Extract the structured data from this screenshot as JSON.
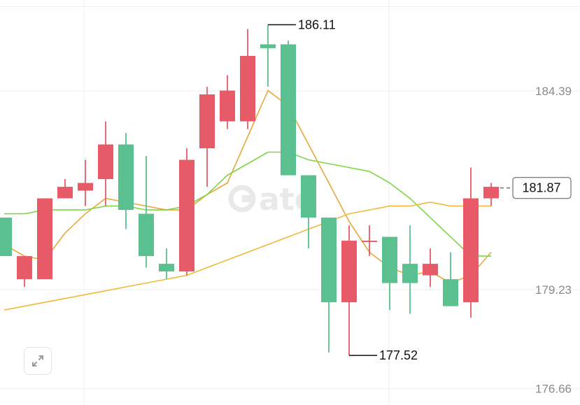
{
  "chart_data": {
    "type": "candlestick",
    "y_axis_ticks": [
      "184.39",
      "179.23",
      "176.66"
    ],
    "ylim": [
      176.5,
      186.6
    ],
    "grid": true,
    "candles": [
      {
        "open": 181.1,
        "close": 180.1,
        "high": 181.1,
        "low": 180.1
      },
      {
        "open": 179.5,
        "close": 180.1,
        "high": 180.1,
        "low": 179.3
      },
      {
        "open": 179.5,
        "close": 181.6,
        "high": 181.6,
        "low": 179.5
      },
      {
        "open": 181.6,
        "close": 181.9,
        "high": 182.1,
        "low": 181.6
      },
      {
        "open": 181.8,
        "close": 182.0,
        "high": 182.6,
        "low": 181.4
      },
      {
        "open": 182.1,
        "close": 183.0,
        "high": 183.6,
        "low": 181.4
      },
      {
        "open": 183.0,
        "close": 181.3,
        "high": 183.3,
        "low": 180.8
      },
      {
        "open": 181.2,
        "close": 180.1,
        "high": 182.7,
        "low": 179.8
      },
      {
        "open": 179.9,
        "close": 179.7,
        "high": 180.3,
        "low": 179.5
      },
      {
        "open": 179.7,
        "close": 182.6,
        "high": 182.9,
        "low": 179.6
      },
      {
        "open": 182.9,
        "close": 184.3,
        "high": 184.5,
        "low": 181.9
      },
      {
        "open": 183.6,
        "close": 184.4,
        "high": 184.8,
        "low": 183.4
      },
      {
        "open": 183.6,
        "close": 185.3,
        "high": 186.0,
        "low": 183.4
      },
      {
        "open": 185.6,
        "close": 185.5,
        "high": 186.11,
        "low": 184.5
      },
      {
        "open": 185.6,
        "close": 182.2,
        "high": 185.7,
        "low": 182.2
      },
      {
        "open": 182.2,
        "close": 181.1,
        "high": 182.2,
        "low": 180.3
      },
      {
        "open": 181.1,
        "close": 178.9,
        "high": 181.1,
        "low": 177.6
      },
      {
        "open": 178.9,
        "close": 180.5,
        "high": 180.9,
        "low": 177.52
      },
      {
        "open": 180.5,
        "close": 180.5,
        "high": 180.9,
        "low": 180.1
      },
      {
        "open": 180.6,
        "close": 179.4,
        "high": 180.6,
        "low": 178.7
      },
      {
        "open": 179.9,
        "close": 179.4,
        "high": 180.9,
        "low": 178.6
      },
      {
        "open": 179.6,
        "close": 179.9,
        "high": 180.3,
        "low": 179.3
      },
      {
        "open": 179.5,
        "close": 178.8,
        "high": 180.2,
        "low": 178.8
      },
      {
        "open": 178.9,
        "close": 181.6,
        "high": 182.4,
        "low": 178.5
      },
      {
        "open": 181.6,
        "close": 181.9,
        "high": 182.0,
        "low": 181.4
      }
    ],
    "ma_lines": [
      {
        "color": "#e8a73a",
        "values": [
          180.4,
          180.1,
          180.0,
          180.7,
          181.2,
          181.6,
          181.5,
          181.4,
          181.3,
          181.3,
          181.7,
          182.0,
          183.2,
          184.4,
          184.0,
          183.0,
          182.0,
          181.0,
          180.2,
          179.8,
          179.6,
          179.7,
          179.4,
          179.6,
          180.2
        ]
      },
      {
        "color": "#7cd648",
        "values": [
          181.2,
          181.2,
          181.3,
          181.3,
          181.3,
          181.4,
          181.4,
          181.3,
          181.3,
          181.4,
          181.7,
          182.2,
          182.5,
          182.8,
          182.8,
          182.6,
          182.5,
          182.4,
          182.3,
          182.0,
          181.6,
          181.1,
          180.6,
          180.1,
          180.1
        ]
      },
      {
        "color": "#f0b93a",
        "values": [
          178.7,
          178.8,
          178.9,
          179.0,
          179.1,
          179.2,
          179.3,
          179.4,
          179.5,
          179.6,
          179.8,
          180.0,
          180.2,
          180.4,
          180.6,
          180.8,
          181.0,
          181.2,
          181.3,
          181.4,
          181.4,
          181.5,
          181.4,
          181.4,
          181.4
        ]
      }
    ],
    "annotations": {
      "high": "186.11",
      "low": "177.52",
      "last": "181.87"
    },
    "colors": {
      "up": "#e65b67",
      "down": "#5bc08f",
      "grid": "#efefef",
      "axis_text": "#8a8a8a"
    },
    "watermark_icon": "gate-logo-icon"
  },
  "controls": {
    "expand_icon": "expand-arrows-icon"
  }
}
